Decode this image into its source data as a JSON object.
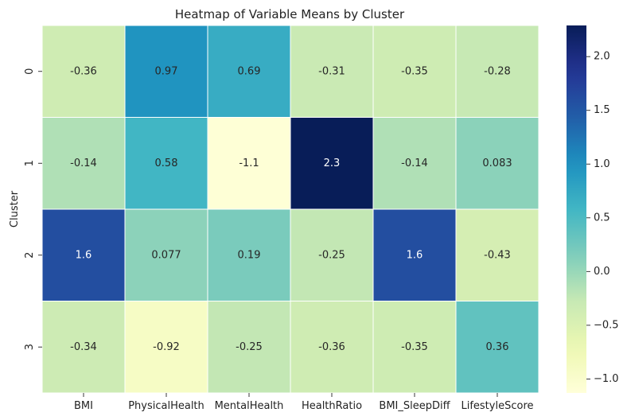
{
  "chart_data": {
    "type": "heatmap",
    "title": "Heatmap of Variable Means by Cluster",
    "xlabel": "",
    "ylabel": "Cluster",
    "x_categories": [
      "BMI",
      "PhysicalHealth",
      "MentalHealth",
      "HealthRatio",
      "BMI_SleepDiff",
      "LifestyleScore"
    ],
    "y_categories": [
      "0",
      "1",
      "2",
      "3"
    ],
    "values": [
      [
        -0.36,
        0.97,
        0.69,
        -0.31,
        -0.35,
        -0.28
      ],
      [
        -0.14,
        0.58,
        -1.1,
        2.3,
        -0.14,
        0.083
      ],
      [
        1.6,
        0.077,
        0.19,
        -0.25,
        1.6,
        -0.43
      ],
      [
        -0.34,
        -0.92,
        -0.25,
        -0.36,
        -0.35,
        0.36
      ]
    ],
    "cell_labels": [
      [
        "-0.36",
        "0.97",
        "0.69",
        "-0.31",
        "-0.35",
        "-0.28"
      ],
      [
        "-0.14",
        "0.58",
        "-1.1",
        "2.3",
        "-0.14",
        "0.083"
      ],
      [
        "1.6",
        "0.077",
        "0.19",
        "-0.25",
        "1.6",
        "-0.43"
      ],
      [
        "-0.34",
        "-0.92",
        "-0.25",
        "-0.36",
        "-0.35",
        "0.36"
      ]
    ],
    "colormap": "YlGnBu",
    "vmin": -1.13,
    "vmax": 2.29,
    "colorbar_ticks": [
      {
        "value": 2.0,
        "label": "2.0"
      },
      {
        "value": 1.5,
        "label": "1.5"
      },
      {
        "value": 1.0,
        "label": "1.0"
      },
      {
        "value": 0.5,
        "label": "0.5"
      },
      {
        "value": 0.0,
        "label": "0.0"
      },
      {
        "value": -0.5,
        "label": "−0.5"
      },
      {
        "value": -1.0,
        "label": "−1.0"
      }
    ],
    "cell_border_color": "#ffffff",
    "legend": "colorbar-right"
  }
}
